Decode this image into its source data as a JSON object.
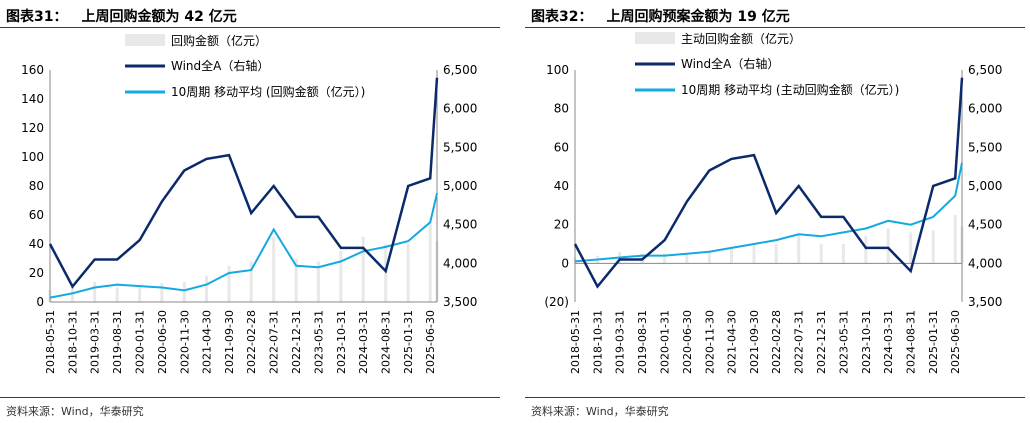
{
  "colors": {
    "bar": "#e8e8e8",
    "index_line": "#0b2a6b",
    "ma_line": "#14a9e0",
    "rule": "#1f3a93"
  },
  "charts": [
    {
      "number": "图表31：",
      "title": "上周回购金额为 42 亿元",
      "source": "资料来源：Wind，华泰研究",
      "legend": [
        "回购金额（亿元）",
        "Wind全A（右轴）",
        "10周期 移动平均 (回购金额（亿元）)"
      ]
    },
    {
      "number": "图表32：",
      "title": "上周回购预案金额为 19 亿元",
      "source": "资料来源：Wind，华泰研究",
      "legend": [
        "主动回购金额（亿元）",
        "Wind全A（右轴）",
        "10周期 移动平均 (主动回购金额（亿元）)"
      ]
    }
  ],
  "chart_data": [
    {
      "type": "bar",
      "title": "上周回购金额为 42 亿元",
      "x_tick_labels": [
        "2018-05-31",
        "2018-10-31",
        "2019-03-31",
        "2019-08-31",
        "2020-01-31",
        "2020-06-30",
        "2020-11-30",
        "2021-04-30",
        "2021-09-30",
        "2022-02-28",
        "2022-07-31",
        "2022-12-31",
        "2023-05-31",
        "2023-10-31",
        "2024-03-31",
        "2024-08-31",
        "2025-01-31",
        "2025-06-30"
      ],
      "y_left": {
        "ylim": [
          0,
          160
        ],
        "ticks": [
          0,
          20,
          40,
          60,
          80,
          100,
          120,
          140,
          160
        ]
      },
      "y_right": {
        "ylim": [
          3500,
          6500
        ],
        "ticks": [
          "3,500",
          "4,000",
          "4,500",
          "5,000",
          "5,500",
          "6,000",
          "6,500"
        ]
      },
      "series": [
        {
          "name": "回购金额（亿元）",
          "type": "bar",
          "x": [
            "2018-05-31",
            "2018-10-31",
            "2019-03-31",
            "2019-08-31",
            "2020-01-31",
            "2020-06-30",
            "2020-11-30",
            "2021-04-30",
            "2021-09-30",
            "2022-02-28",
            "2022-07-31",
            "2022-12-31",
            "2023-05-31",
            "2023-10-31",
            "2024-03-31",
            "2024-08-31",
            "2025-01-31",
            "2025-06-30",
            "2025-08-15"
          ],
          "values": [
            8,
            12,
            14,
            10,
            12,
            13,
            14,
            18,
            25,
            28,
            45,
            30,
            28,
            35,
            45,
            40,
            40,
            55,
            42
          ]
        },
        {
          "name": "Wind全A（右轴）",
          "type": "line",
          "axis": "right",
          "x": [
            "2018-05-31",
            "2018-10-31",
            "2019-03-31",
            "2019-08-31",
            "2020-01-31",
            "2020-06-30",
            "2020-11-30",
            "2021-04-30",
            "2021-09-30",
            "2022-02-28",
            "2022-07-31",
            "2022-12-31",
            "2023-05-31",
            "2023-10-31",
            "2024-03-31",
            "2024-08-31",
            "2025-01-31",
            "2025-06-30",
            "2025-08-15"
          ],
          "values": [
            4250,
            3700,
            4050,
            4050,
            4300,
            4800,
            5200,
            5350,
            5400,
            4650,
            5000,
            4600,
            4600,
            4200,
            4200,
            3900,
            5000,
            5100,
            6400
          ]
        },
        {
          "name": "10周期 移动平均 (回购金额（亿元）)",
          "type": "line",
          "x": [
            "2018-05-31",
            "2018-10-31",
            "2019-03-31",
            "2019-08-31",
            "2020-01-31",
            "2020-06-30",
            "2020-11-30",
            "2021-04-30",
            "2021-09-30",
            "2022-02-28",
            "2022-07-31",
            "2022-12-31",
            "2023-05-31",
            "2023-10-31",
            "2024-03-31",
            "2024-08-31",
            "2025-01-31",
            "2025-06-30",
            "2025-08-15"
          ],
          "values": [
            3,
            6,
            10,
            12,
            11,
            10,
            8,
            12,
            20,
            22,
            50,
            25,
            24,
            28,
            35,
            38,
            42,
            55,
            75
          ]
        }
      ]
    },
    {
      "type": "bar",
      "title": "上周回购预案金额为 19 亿元",
      "x_tick_labels": [
        "2018-05-31",
        "2018-10-31",
        "2019-03-31",
        "2019-08-31",
        "2020-01-31",
        "2020-06-30",
        "2020-11-30",
        "2021-04-30",
        "2021-09-30",
        "2022-02-28",
        "2022-07-31",
        "2022-12-31",
        "2023-05-31",
        "2023-10-31",
        "2024-03-31",
        "2024-08-31",
        "2025-01-31",
        "2025-06-30"
      ],
      "y_left": {
        "ylim": [
          -20,
          100
        ],
        "ticks": [
          "(20)",
          "0",
          "20",
          "40",
          "60",
          "80",
          "100"
        ]
      },
      "y_right": {
        "ylim": [
          3500,
          6500
        ],
        "ticks": [
          "3,500",
          "4,000",
          "4,500",
          "5,000",
          "5,500",
          "6,000",
          "6,500"
        ]
      },
      "series": [
        {
          "name": "主动回购金额（亿元）",
          "type": "bar",
          "x": [
            "2018-05-31",
            "2018-10-31",
            "2019-03-31",
            "2019-08-31",
            "2020-01-31",
            "2020-06-30",
            "2020-11-30",
            "2021-04-30",
            "2021-09-30",
            "2022-02-28",
            "2022-07-31",
            "2022-12-31",
            "2023-05-31",
            "2023-10-31",
            "2024-03-31",
            "2024-08-31",
            "2025-01-31",
            "2025-06-30",
            "2025-08-15"
          ],
          "values": [
            3,
            4,
            6,
            5,
            5,
            5,
            6,
            8,
            10,
            10,
            15,
            10,
            10,
            14,
            18,
            16,
            17,
            25,
            19
          ]
        },
        {
          "name": "Wind全A（右轴）",
          "type": "line",
          "axis": "right",
          "x": [
            "2018-05-31",
            "2018-10-31",
            "2019-03-31",
            "2019-08-31",
            "2020-01-31",
            "2020-06-30",
            "2020-11-30",
            "2021-04-30",
            "2021-09-30",
            "2022-02-28",
            "2022-07-31",
            "2022-12-31",
            "2023-05-31",
            "2023-10-31",
            "2024-03-31",
            "2024-08-31",
            "2025-01-31",
            "2025-06-30",
            "2025-08-15"
          ],
          "values": [
            4250,
            3700,
            4050,
            4050,
            4300,
            4800,
            5200,
            5350,
            5400,
            4650,
            5000,
            4600,
            4600,
            4200,
            4200,
            3900,
            5000,
            5100,
            6400
          ]
        },
        {
          "name": "10周期 移动平均 (主动回购金额（亿元）)",
          "type": "line",
          "x": [
            "2018-05-31",
            "2018-10-31",
            "2019-03-31",
            "2019-08-31",
            "2020-01-31",
            "2020-06-30",
            "2020-11-30",
            "2021-04-30",
            "2021-09-30",
            "2022-02-28",
            "2022-07-31",
            "2022-12-31",
            "2023-05-31",
            "2023-10-31",
            "2024-03-31",
            "2024-08-31",
            "2025-01-31",
            "2025-06-30",
            "2025-08-15"
          ],
          "values": [
            1,
            2,
            3,
            4,
            4,
            5,
            6,
            8,
            10,
            12,
            15,
            14,
            16,
            18,
            22,
            20,
            24,
            35,
            52
          ]
        }
      ]
    }
  ]
}
